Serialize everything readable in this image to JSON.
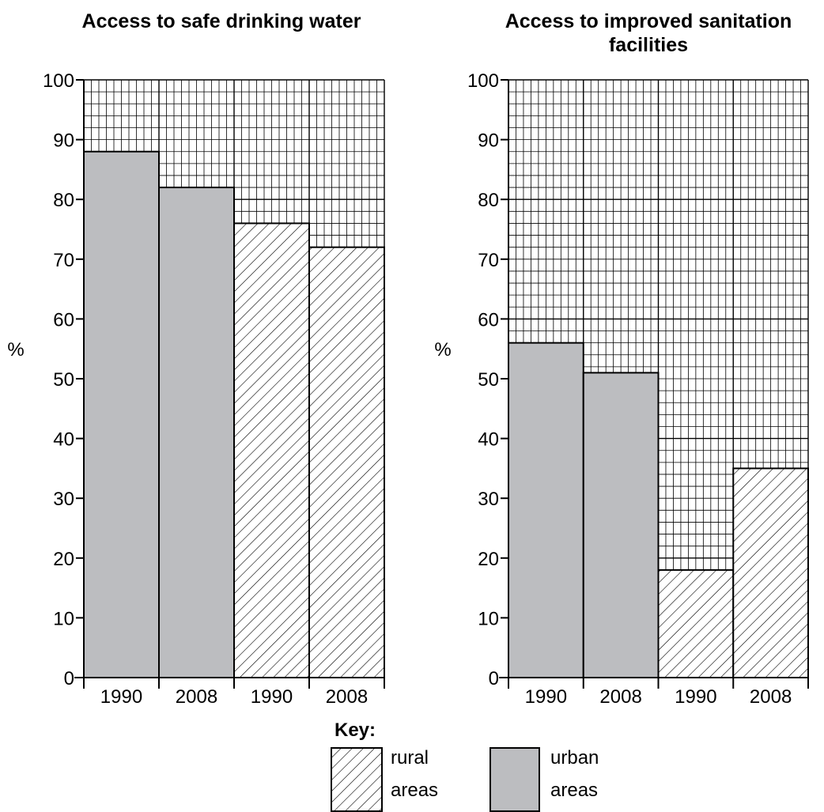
{
  "chart_data": [
    {
      "type": "bar",
      "title": "Access to safe drinking water",
      "ylabel": "%",
      "ylim": [
        0,
        100
      ],
      "yticks": [
        "0",
        "10",
        "20",
        "30",
        "40",
        "50",
        "60",
        "70",
        "80",
        "90",
        "100"
      ],
      "grid": true,
      "categories": [
        "1990",
        "2008",
        "1990",
        "2008"
      ],
      "groups": [
        "urban areas",
        "urban areas",
        "rural areas",
        "rural areas"
      ],
      "values": [
        88,
        82,
        76,
        72
      ]
    },
    {
      "type": "bar",
      "title": "Access to improved sanitation facilities",
      "ylabel": "%",
      "ylim": [
        0,
        100
      ],
      "yticks": [
        "0",
        "10",
        "20",
        "30",
        "40",
        "50",
        "60",
        "70",
        "80",
        "90",
        "100"
      ],
      "grid": true,
      "categories": [
        "1990",
        "2008",
        "1990",
        "2008"
      ],
      "groups": [
        "urban areas",
        "urban areas",
        "rural areas",
        "rural areas"
      ],
      "values": [
        56,
        51,
        18,
        35
      ]
    }
  ],
  "key": {
    "title": "Key:",
    "rural": [
      "rural",
      "areas"
    ],
    "urban": [
      "urban",
      "areas"
    ]
  },
  "colors": {
    "urban_fill": "#bcbdc0",
    "grid": "#000000"
  }
}
